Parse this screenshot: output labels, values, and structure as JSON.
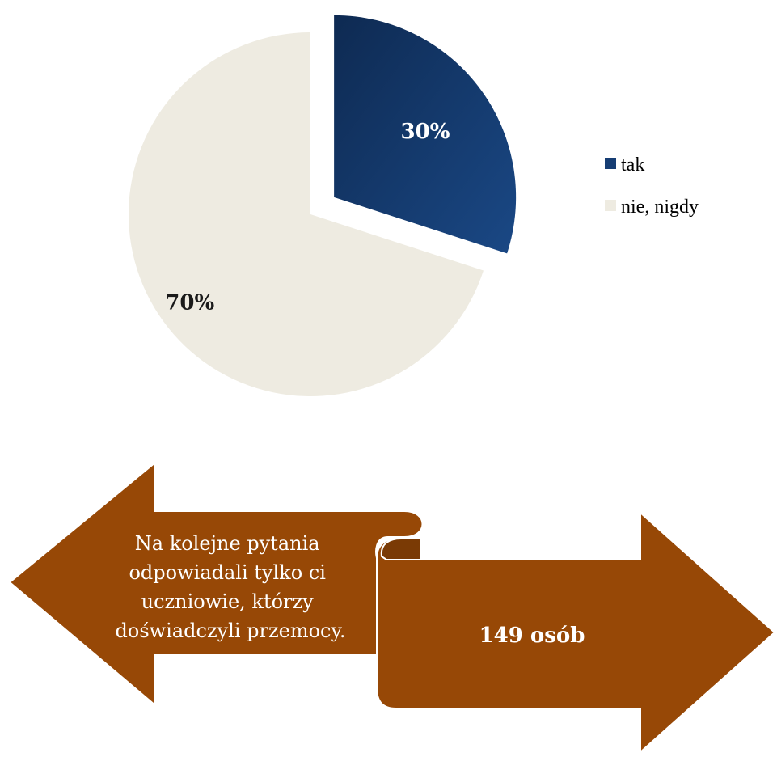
{
  "chart_data": {
    "type": "pie",
    "title": "",
    "slices": [
      {
        "label": "tak",
        "value": 30,
        "data_label": "30%",
        "exploded": true
      },
      {
        "label": "nie, nigdy",
        "value": 70,
        "data_label": "70%",
        "exploded": false
      }
    ],
    "legend_placement": "right",
    "colors": {
      "tak": "#163d73",
      "tak_gradient_dark": "#0e2a52",
      "nie, nigdy": "#eeebe1",
      "tak_label": "#ffffff",
      "nie_label": "#1a1a1a"
    }
  },
  "legend": {
    "items": [
      {
        "label": "tak",
        "color": "#163d73"
      },
      {
        "label": "nie, nigdy",
        "color": "#eeebe1"
      }
    ]
  },
  "arrows": {
    "color": "#974806",
    "fold_color": "#7a3a05",
    "left_text_lines": [
      "Na kolejne pytania",
      "odpowiadali tylko ci",
      "uczniowie, którzy",
      "doświadczyli przemocy."
    ],
    "right_text": "149 osób"
  }
}
